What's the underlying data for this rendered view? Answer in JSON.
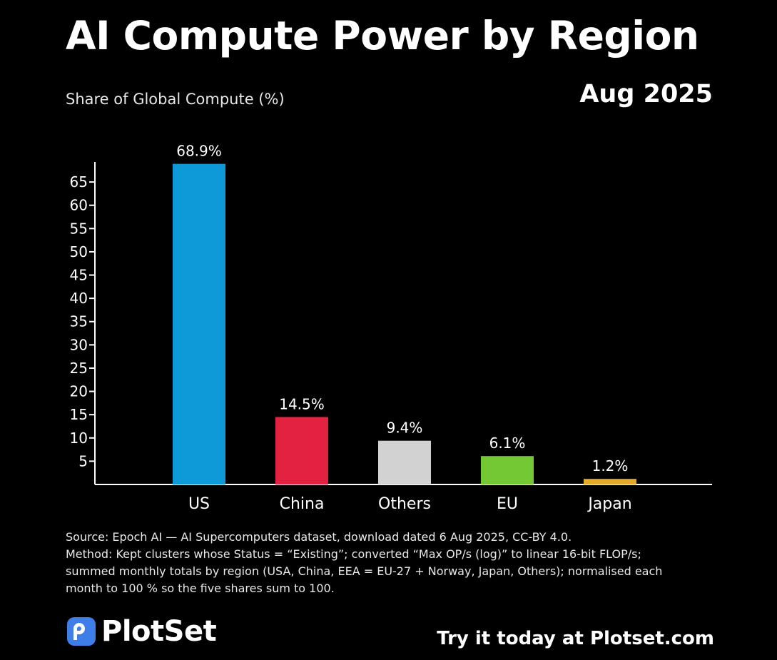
{
  "header": {
    "title": "AI Compute Power by Region",
    "date": "Aug 2025"
  },
  "chart_data": {
    "type": "bar",
    "ylabel": "Share of Global Compute (%)",
    "categories": [
      "US",
      "China",
      "Others",
      "EU",
      "Japan"
    ],
    "values": [
      68.9,
      14.5,
      9.4,
      6.1,
      1.2
    ],
    "data_labels": [
      "68.9%",
      "14.5%",
      "9.4%",
      "6.1%",
      "1.2%"
    ],
    "colors": [
      "#0e9ad8",
      "#e32241",
      "#d2d2d2",
      "#74c833",
      "#e5a92c"
    ],
    "yticks": [
      5,
      10,
      15,
      20,
      25,
      30,
      35,
      40,
      45,
      50,
      55,
      60,
      65
    ],
    "ylim": [
      0,
      69
    ],
    "grid": false
  },
  "notes": {
    "source": "Source: Epoch AI — AI Supercomputers dataset, download dated 6 Aug 2025, CC-BY 4.0.",
    "method_line1": "Method: Kept clusters whose Status = “Existing”; converted “Max OP/s (log)” to linear 16-bit FLOP/s;",
    "method_line2": "summed monthly totals by region (USA, China, EEA = EU-27 + Norway, Japan, Others); normalised each",
    "method_line3": "month to 100 % so the five shares sum to 100."
  },
  "footer": {
    "brand": "PlotSet",
    "cta": "Try it today at Plotset.com"
  }
}
